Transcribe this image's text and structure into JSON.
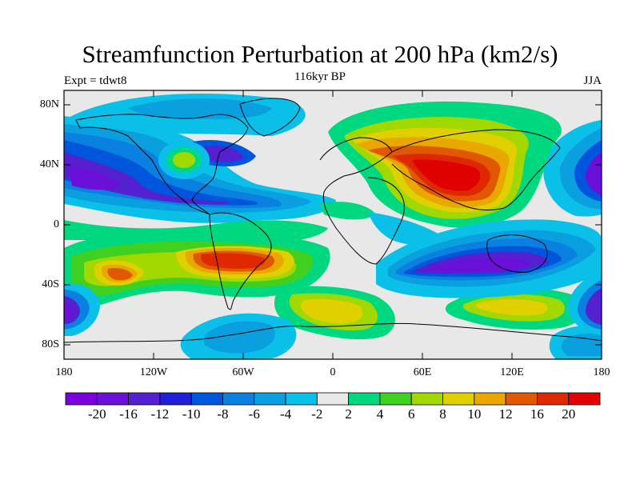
{
  "title": "Streamfunction Perturbation at 200 hPa (km2/s)",
  "left_label": "Expt = tdwt8",
  "center_label": "116kyr BP",
  "right_label": "JJA",
  "lat_ticks": [
    "80N",
    "40N",
    "0",
    "40S",
    "80S"
  ],
  "lon_ticks": [
    "180",
    "120W",
    "60W",
    "0",
    "60E",
    "120E",
    "180"
  ],
  "colorbar": {
    "colors": [
      "#7a00e0",
      "#6a10d8",
      "#5520d0",
      "#2020d8",
      "#0055dd",
      "#0a80e0",
      "#0aa0e0",
      "#0ac0e8",
      "#e8e8e8",
      "#00d880",
      "#40d020",
      "#a0d800",
      "#e0d000",
      "#e8a800",
      "#e05800",
      "#e02800",
      "#e00000"
    ],
    "labels": [
      "-20",
      "-16",
      "-12",
      "-10",
      "-8",
      "-6",
      "-4",
      "-2",
      "2",
      "4",
      "6",
      "8",
      "10",
      "12",
      "16",
      "20"
    ]
  }
}
